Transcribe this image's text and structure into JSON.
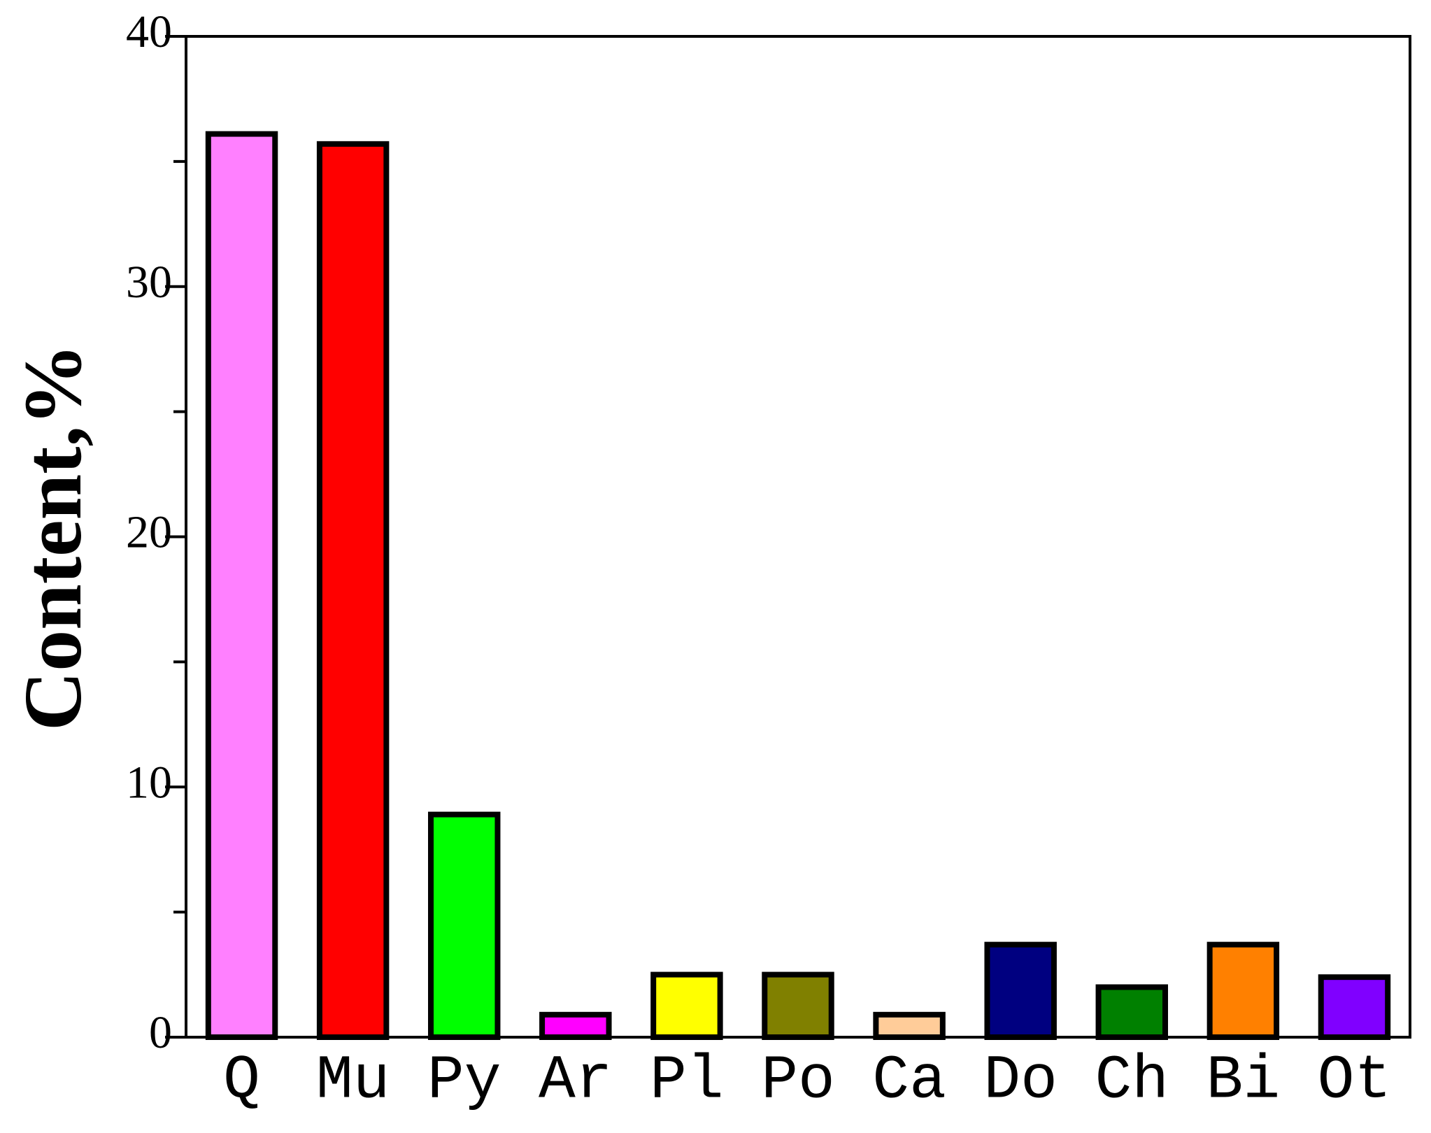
{
  "chart_data": {
    "type": "bar",
    "ylabel": "Content,%",
    "categories": [
      "Q",
      "Mu",
      "Py",
      "Ar",
      "Pl",
      "Po",
      "Ca",
      "Do",
      "Ch",
      "Bi",
      "Ot"
    ],
    "values": [
      36.1,
      35.7,
      8.9,
      0.9,
      2.5,
      2.5,
      0.9,
      3.7,
      2.0,
      3.7,
      2.4
    ],
    "colors": [
      "#ff80ff",
      "#ff0000",
      "#00ff00",
      "#ff00ff",
      "#ffff00",
      "#808000",
      "#ffcc99",
      "#000080",
      "#008000",
      "#ff8000",
      "#8000ff"
    ],
    "ylim": [
      0,
      40
    ],
    "yticks": [
      0,
      10,
      20,
      30,
      40
    ],
    "yminor_ticks": [
      5,
      15,
      25,
      35
    ],
    "grid": false
  }
}
